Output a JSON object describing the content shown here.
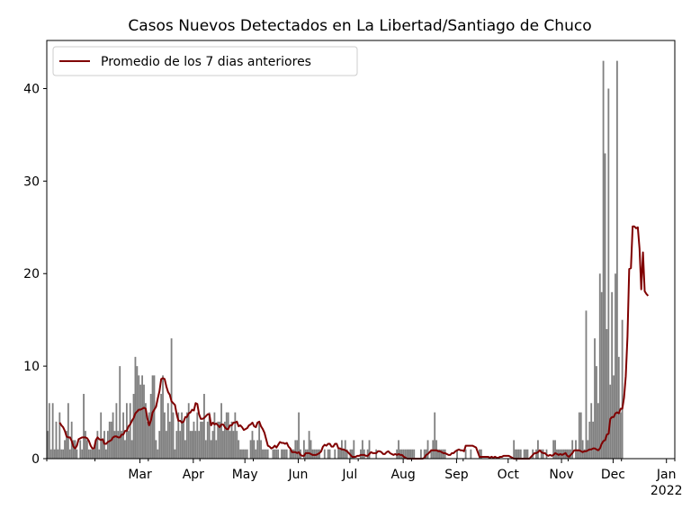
{
  "chart_data": {
    "type": "bar",
    "title": "Casos Nuevos Detectados en La Libertad/Santiago de Chuco",
    "xlabel": "",
    "ylabel": "",
    "ylim": [
      0,
      45.2
    ],
    "x_range": [
      "2021-02-01",
      "2022-01-31"
    ],
    "yticks": [
      0,
      10,
      20,
      30,
      40
    ],
    "xticks": [
      {
        "label": "Mar",
        "date": "2021-03-01"
      },
      {
        "label": "Apr",
        "date": "2021-04-01"
      },
      {
        "label": "May",
        "date": "2021-05-01"
      },
      {
        "label": "Jun",
        "date": "2021-06-01"
      },
      {
        "label": "Jul",
        "date": "2021-07-01"
      },
      {
        "label": "Aug",
        "date": "2021-08-01"
      },
      {
        "label": "Sep",
        "date": "2021-09-01"
      },
      {
        "label": "Oct",
        "date": "2021-10-01"
      },
      {
        "label": "Nov",
        "date": "2021-11-01"
      },
      {
        "label": "Dec",
        "date": "2021-12-01"
      },
      {
        "label": "Jan",
        "date": "2022-01-01",
        "sublabel": "2022"
      }
    ],
    "legend": {
      "position": "top-left",
      "entries": [
        "Promedio de los 7 dias anteriores"
      ]
    },
    "grid": false,
    "bar_color": "#808080",
    "line_color": "#800000",
    "series": [
      {
        "type": "bar",
        "start_date": "2021-02-01",
        "values": [
          3,
          6,
          1,
          6,
          1,
          4,
          1,
          5,
          1,
          1,
          2,
          3,
          6,
          1,
          4,
          2,
          2,
          1,
          0,
          2,
          1,
          7,
          3,
          2,
          1,
          1,
          1,
          1,
          2,
          3,
          1,
          5,
          2,
          3,
          1,
          3,
          4,
          4,
          5,
          3,
          6,
          3,
          10,
          3,
          5,
          2,
          6,
          3,
          6,
          2,
          7,
          11,
          10,
          9,
          8,
          9,
          8,
          6,
          4,
          5,
          7,
          9,
          9,
          2,
          1,
          3,
          7,
          9,
          5,
          3,
          6,
          4,
          13,
          5,
          1,
          3,
          5,
          3,
          5,
          4,
          2,
          5,
          6,
          3,
          3,
          4,
          3,
          5,
          3,
          4,
          4,
          7,
          2,
          4,
          5,
          2,
          3,
          5,
          2,
          4,
          4,
          6,
          3,
          4,
          5,
          5,
          3,
          4,
          3,
          5,
          3,
          2,
          1,
          1,
          1,
          1,
          1,
          0,
          2,
          3,
          2,
          1,
          2,
          4,
          2,
          1,
          1,
          1,
          1,
          0,
          0,
          1,
          1,
          1,
          1,
          0,
          1,
          1,
          1,
          1,
          0,
          1,
          1,
          1,
          2,
          2,
          5,
          1,
          0,
          2,
          1,
          1,
          3,
          2,
          1,
          1,
          1,
          1,
          1,
          0,
          0,
          1,
          0,
          1,
          1,
          0,
          0,
          1,
          0,
          1,
          1,
          2,
          1,
          2,
          1,
          0,
          1,
          1,
          2,
          0,
          0,
          0,
          1,
          2,
          1,
          0,
          1,
          2,
          0,
          0,
          0,
          1,
          0,
          0,
          0,
          0,
          0,
          0,
          0,
          0,
          0,
          0,
          0,
          1,
          2,
          1,
          1,
          1,
          1,
          1,
          1,
          1,
          1,
          1,
          0,
          0,
          0,
          1,
          0,
          1,
          1,
          2,
          0,
          1,
          2,
          5,
          2,
          1,
          1,
          1,
          1,
          1,
          0,
          0,
          0,
          0,
          0,
          0,
          1,
          0,
          0,
          0,
          0,
          1,
          0,
          0,
          1,
          0,
          0,
          0,
          0,
          1,
          1,
          0,
          0,
          0,
          0,
          0,
          0,
          0,
          0,
          0,
          0,
          0,
          0,
          0,
          0,
          0,
          0,
          0,
          0,
          2,
          1,
          1,
          1,
          1,
          0,
          1,
          1,
          1,
          0,
          0,
          1,
          0,
          1,
          2,
          0,
          1,
          1,
          0,
          1,
          0,
          0,
          0,
          2,
          2,
          1,
          1,
          1,
          1,
          1,
          1,
          1,
          1,
          1,
          2,
          0,
          2,
          1,
          5,
          5,
          2,
          1,
          16,
          2,
          4,
          6,
          4,
          13,
          10,
          6,
          20,
          18,
          43,
          33,
          14,
          40,
          8,
          18,
          9,
          20,
          43,
          11,
          5,
          15
        ],
        "note": ""
      },
      {
        "type": "line",
        "name": "Promedio de los 7 dias anteriores",
        "start_date": "2021-02-08",
        "values": [
          3.9,
          3.6,
          3.4,
          3.0,
          2.4,
          2.3,
          2.3,
          1.9,
          1.3,
          1.1,
          1.4,
          2.1,
          2.2,
          2.3,
          2.3,
          2.3,
          2.2,
          1.9,
          1.4,
          1.1,
          1.1,
          2.0,
          2.3,
          2.1,
          2.0,
          2.1,
          1.6,
          1.6,
          1.8,
          1.9,
          2.0,
          2.3,
          2.4,
          2.4,
          2.3,
          2.3,
          2.6,
          2.6,
          3.0,
          3.0,
          3.5,
          3.7,
          4.1,
          4.4,
          4.9,
          5.1,
          5.3,
          5.3,
          5.4,
          5.5,
          5.4,
          4.3,
          3.6,
          4.1,
          5.0,
          5.3,
          5.6,
          6.5,
          7.3,
          8.6,
          8.7,
          8.6,
          7.8,
          7.2,
          6.9,
          6.2,
          6.0,
          5.8,
          4.8,
          4.1,
          4.1,
          3.9,
          4.0,
          4.5,
          4.5,
          4.9,
          5.0,
          5.3,
          5.2,
          6.0,
          5.9,
          4.8,
          4.3,
          4.3,
          4.4,
          4.6,
          4.8,
          4.8,
          3.6,
          3.9,
          3.7,
          3.8,
          3.6,
          3.4,
          3.7,
          3.7,
          3.4,
          3.2,
          3.2,
          3.6,
          3.6,
          3.9,
          3.9,
          4.0,
          3.5,
          3.6,
          3.4,
          3.1,
          3.2,
          3.3,
          3.6,
          3.7,
          3.9,
          3.5,
          3.4,
          3.9,
          4.0,
          3.5,
          3.2,
          2.8,
          2.1,
          1.4,
          1.3,
          1.1,
          1.2,
          1.4,
          1.2,
          1.5,
          1.8,
          1.7,
          1.7,
          1.6,
          1.7,
          1.3,
          1.1,
          0.7,
          0.7,
          0.7,
          0.6,
          0.7,
          0.4,
          0.3,
          0.3,
          0.6,
          0.6,
          0.6,
          0.5,
          0.4,
          0.4,
          0.4,
          0.5,
          0.6,
          0.8,
          1.3,
          1.5,
          1.4,
          1.6,
          1.6,
          1.3,
          1.3,
          1.6,
          1.6,
          1.1,
          1.1,
          1.0,
          1.0,
          0.9,
          0.8,
          0.6,
          0.4,
          0.2,
          0.2,
          0.2,
          0.3,
          0.3,
          0.4,
          0.4,
          0.4,
          0.3,
          0.3,
          0.5,
          0.7,
          0.6,
          0.6,
          0.6,
          0.8,
          0.8,
          0.7,
          0.5,
          0.5,
          0.7,
          0.8,
          0.6,
          0.5,
          0.4,
          0.5,
          0.4,
          0.5,
          0.4,
          0.4,
          0.2,
          0.1,
          0.0,
          0.0,
          0.0,
          0.0,
          0.0,
          0.0,
          0.0,
          0.0,
          0.0,
          0.0,
          0.1,
          0.4,
          0.5,
          0.7,
          0.9,
          0.9,
          0.9,
          0.9,
          0.8,
          0.8,
          0.7,
          0.6,
          0.6,
          0.5,
          0.4,
          0.4,
          0.6,
          0.6,
          0.8,
          0.9,
          1.0,
          0.9,
          0.9,
          0.8,
          1.4,
          1.4,
          1.4,
          1.4,
          1.4,
          1.3,
          1.2,
          0.7,
          0.2,
          0.2,
          0.2,
          0.2,
          0.2,
          0.2,
          0.1,
          0.2,
          0.1,
          0.2,
          0.1,
          0.1,
          0.2,
          0.2,
          0.3,
          0.3,
          0.3,
          0.3,
          0.2,
          0.1,
          0.0,
          0.0,
          0.0,
          0.0,
          0.0,
          0.0,
          0.0,
          0.0,
          0.0,
          0.0,
          0.2,
          0.4,
          0.6,
          0.6,
          0.7,
          0.9,
          0.7,
          0.6,
          0.6,
          0.4,
          0.3,
          0.4,
          0.3,
          0.4,
          0.6,
          0.5,
          0.4,
          0.5,
          0.4,
          0.5,
          0.6,
          0.3,
          0.2,
          0.4,
          0.6,
          0.9,
          0.9,
          0.9,
          0.9,
          0.8,
          0.7,
          0.8,
          0.8,
          0.9,
          1.0,
          1.0,
          1.1,
          1.1,
          1.0,
          0.9,
          1.1,
          1.6,
          1.9,
          2.0,
          2.6,
          2.7,
          4.3,
          4.5,
          4.5,
          4.9,
          5.0,
          4.9,
          5.4,
          5.4,
          6.6,
          8.9,
          13.2,
          20.5,
          20.6,
          25.1,
          25.1,
          24.9,
          25.0,
          22.7,
          18.3,
          22.3,
          18.1,
          17.8,
          17.6
        ]
      }
    ]
  }
}
